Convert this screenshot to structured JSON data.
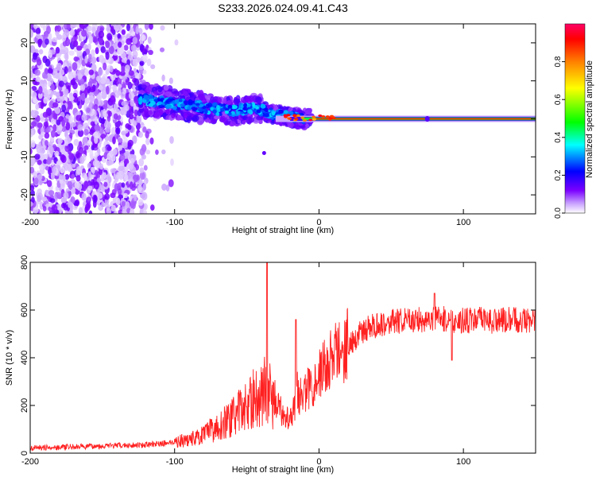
{
  "title": "S233.2026.024.09.41.C43",
  "chart_data": [
    {
      "type": "heatmap",
      "title": "S233.2026.024.09.41.C43",
      "xlabel": "Height of straight line (km)",
      "ylabel": "Frequency (Hz)",
      "xlim": [
        -200,
        150
      ],
      "ylim": [
        -25,
        25
      ],
      "x_ticks": [
        -200,
        -100,
        0,
        100
      ],
      "x_tick_labels": [
        "-200",
        "-100",
        "0",
        "100"
      ],
      "y_ticks": [
        -20,
        -10,
        0,
        10,
        20
      ],
      "y_tick_labels": [
        "-20",
        "-10",
        "0",
        "10",
        "20"
      ],
      "colorbar": {
        "label": "Normalized spectral amplitude",
        "range": [
          0,
          1
        ],
        "ticks": [
          0.0,
          0.2,
          0.4,
          0.6,
          0.8
        ],
        "tick_labels": [
          "0.0",
          "0.2",
          "0.4",
          "0.6",
          "0.8"
        ],
        "colormap": [
          "#ffffff",
          "#7b00ff",
          "#0000ff",
          "#00ffff",
          "#00ff00",
          "#ffff00",
          "#ff8000",
          "#ff0000",
          "#ff0066"
        ]
      },
      "features": {
        "noise_region_x": [
          -200,
          -120
        ],
        "noise_density_falloff_x": [
          -130,
          -100
        ],
        "noise_frequency_range": [
          -25,
          25
        ],
        "transition_x": [
          -125,
          -30
        ],
        "transition_freq_drift": [
          [
            -120,
            5
          ],
          [
            -100,
            4
          ],
          [
            -80,
            3
          ],
          [
            -60,
            2
          ],
          [
            -45,
            3
          ],
          [
            -30,
            1
          ],
          [
            -10,
            0
          ],
          [
            0,
            0.5
          ],
          [
            20,
            0
          ]
        ],
        "tonal_line_x": [
          -20,
          150
        ],
        "tonal_line_freq": 0,
        "tonal_line_amplitude": 0.9
      }
    },
    {
      "type": "line",
      "xlabel": "Height of straight line (km)",
      "ylabel": "SNR (10 * v/v)",
      "xlim": [
        -200,
        150
      ],
      "ylim": [
        0,
        800
      ],
      "x_ticks": [
        -200,
        -100,
        0,
        100
      ],
      "x_tick_labels": [
        "-200",
        "-100",
        "0",
        "100"
      ],
      "y_ticks": [
        0,
        200,
        400,
        600,
        800
      ],
      "y_tick_labels": [
        "0",
        "200",
        "400",
        "600",
        "800"
      ],
      "color": "#ff2020",
      "series": [
        {
          "name": "SNR",
          "x": [
            -200,
            -180,
            -160,
            -140,
            -120,
            -110,
            -100,
            -95,
            -90,
            -85,
            -80,
            -75,
            -70,
            -65,
            -60,
            -55,
            -50,
            -45,
            -40,
            -37,
            -35,
            -33,
            -30,
            -25,
            -20,
            -17,
            -15,
            -12,
            -10,
            -5,
            0,
            5,
            10,
            15,
            20,
            25,
            30,
            40,
            50,
            60,
            70,
            80,
            90,
            100,
            110,
            120,
            130,
            140,
            150
          ],
          "y": [
            22,
            25,
            28,
            32,
            35,
            40,
            48,
            52,
            58,
            65,
            75,
            95,
            110,
            130,
            150,
            175,
            200,
            230,
            240,
            280,
            260,
            230,
            200,
            170,
            150,
            200,
            260,
            230,
            250,
            290,
            330,
            370,
            410,
            430,
            460,
            480,
            510,
            540,
            550,
            555,
            560,
            565,
            560,
            555,
            560,
            555,
            558,
            560,
            555
          ]
        }
      ],
      "spikes": [
        {
          "x": -36,
          "y": 800
        },
        {
          "x": -16,
          "y": 560
        },
        {
          "x": 80,
          "y": 670
        },
        {
          "x": 92,
          "y": 390
        }
      ]
    }
  ]
}
